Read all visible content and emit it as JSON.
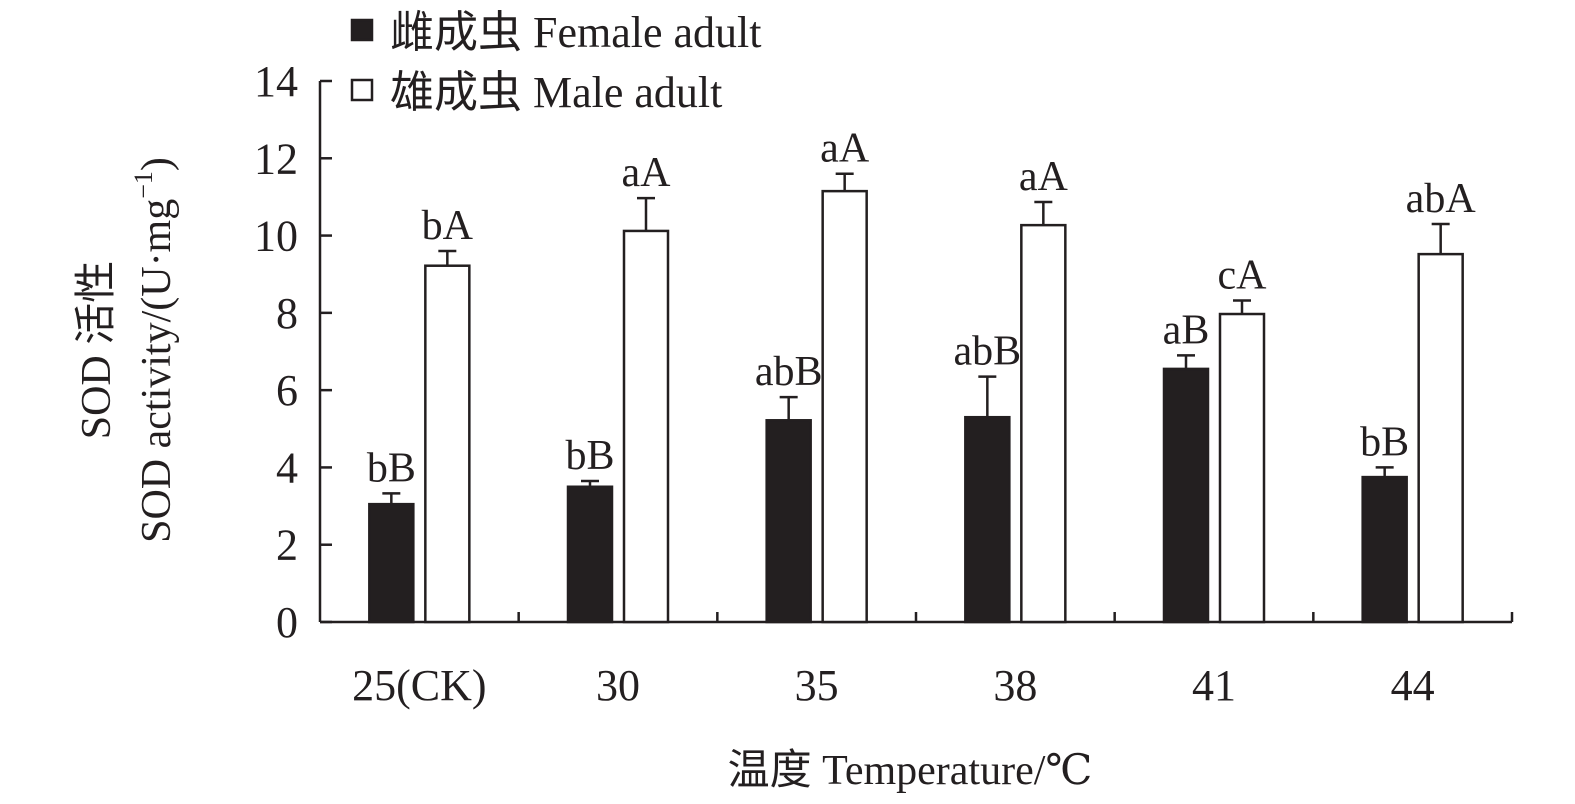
{
  "chart_data": {
    "type": "bar",
    "categories": [
      "25(CK)",
      "30",
      "35",
      "38",
      "41",
      "44"
    ],
    "series": [
      {
        "name": "雌成虫 Female adult",
        "color": "#231f20",
        "fill": "solid",
        "values": [
          3.05,
          3.5,
          5.22,
          5.3,
          6.55,
          3.75
        ],
        "errors": [
          0.28,
          0.15,
          0.6,
          1.05,
          0.35,
          0.25
        ],
        "labels": [
          "bB",
          "bB",
          "abB",
          "abB",
          "aB",
          "bB"
        ]
      },
      {
        "name": "雄成虫 Male adult",
        "color": "#231f20",
        "fill": "hollow",
        "values": [
          9.22,
          10.12,
          11.15,
          10.27,
          7.97,
          9.52
        ],
        "errors": [
          0.38,
          0.85,
          0.45,
          0.6,
          0.35,
          0.78
        ],
        "labels": [
          "bA",
          "aA",
          "aA",
          "aA",
          "cA",
          "abA"
        ]
      }
    ],
    "yticks": [
      0,
      2,
      4,
      6,
      8,
      10,
      12,
      14
    ],
    "ylim": [
      0,
      14
    ],
    "xlabel": "温度 Temperature/℃",
    "ylabel_line1": "SOD 活性",
    "ylabel_line2_main": "SOD activity/(U·mg",
    "ylabel_line2_sup": "−1",
    "ylabel_line2_end": ")",
    "legend_position": "top-left",
    "grid": false
  }
}
